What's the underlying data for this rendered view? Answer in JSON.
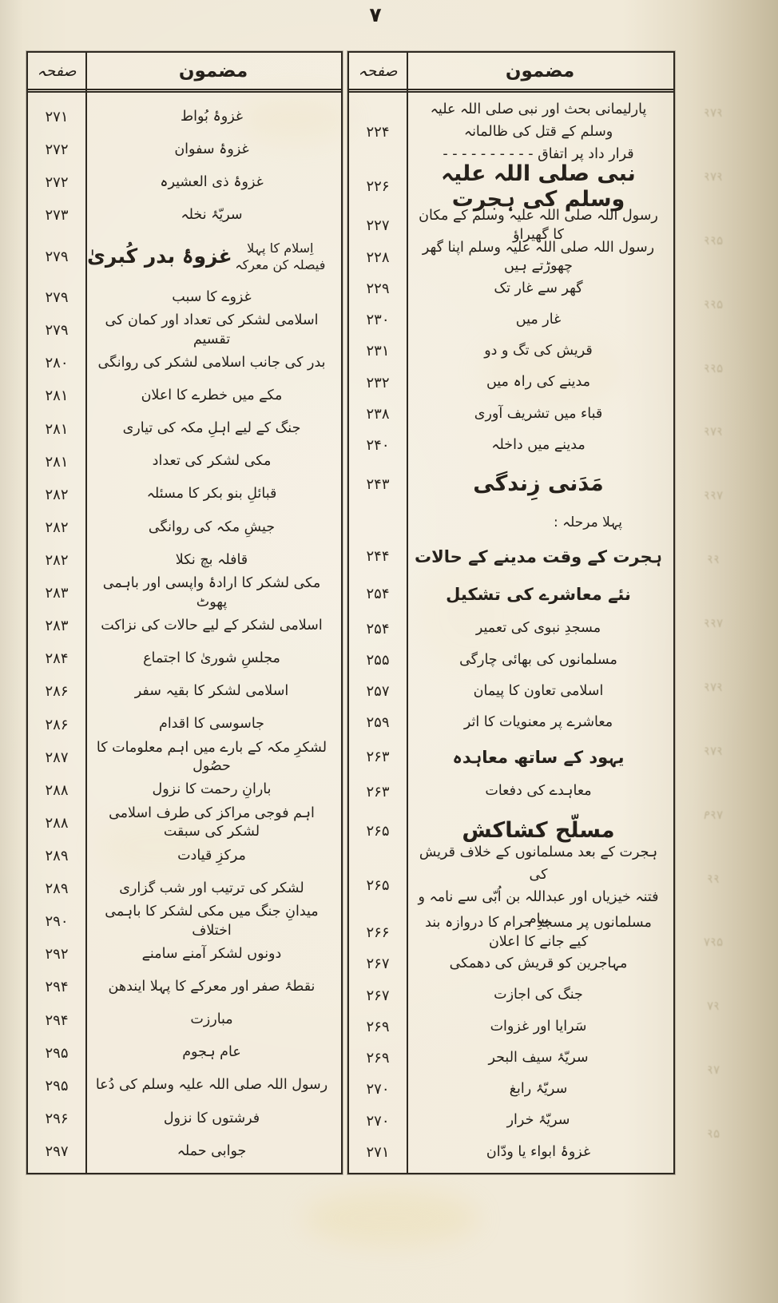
{
  "page": {
    "folio_number": "۷"
  },
  "right_table": {
    "header": {
      "page_col": "صفحہ",
      "topic_col": "مضمون"
    },
    "rows": [
      {
        "page": "۲۲۴",
        "topic": "پارلیمانی بحث اور نبی صلی اللہ علیہ وسلم کے قتل کی ظالمانہ\nقرار داد پر اتفاق  - - - - - - - - - -",
        "style": "twoline"
      },
      {
        "page": "۲۲۶",
        "topic": "نبی صلی اللہ علیہ وسلم کی ہجرت",
        "style": "h1"
      },
      {
        "page": "۲۲۷",
        "topic": "رسول اللہ صلی اللہ علیہ وسلم کے مکان کا گھیراؤ"
      },
      {
        "page": "۲۲۸",
        "topic": "رسول اللہ صلی اللہ علیہ وسلم اپنا گھر چھوڑتے ہیں"
      },
      {
        "page": "۲۲۹",
        "topic": "گھر سے غار تک"
      },
      {
        "page": "۲۳۰",
        "topic": "غار میں"
      },
      {
        "page": "۲۳۱",
        "topic": "قریش کی تگ و دو"
      },
      {
        "page": "۲۳۲",
        "topic": "مدینے کی راہ میں"
      },
      {
        "page": "۲۳۸",
        "topic": "قباء میں تشریف آوری"
      },
      {
        "page": "۲۴۰",
        "topic": "مدینے میں داخلہ"
      },
      {
        "page": "۲۴۳",
        "topic": "مَدَنی زِندگی",
        "style": "h1"
      },
      {
        "page": "",
        "topic": "پہلا مرحلہ :",
        "style": "label"
      },
      {
        "page": "۲۴۴",
        "topic": "ہجرت کے وقت مدینے کے حالات",
        "style": "h2"
      },
      {
        "page": "۲۵۴",
        "topic": "نئے معاشرے کی تشکیل",
        "style": "h2"
      },
      {
        "page": "۲۵۴",
        "topic": "مسجدِ نبوی کی تعمیر"
      },
      {
        "page": "۲۵۵",
        "topic": "مسلمانوں کی بھائی چارگی"
      },
      {
        "page": "۲۵۷",
        "topic": "اسلامی تعاون کا پیمان"
      },
      {
        "page": "۲۵۹",
        "topic": "معاشرے پر معنویات کا اثر"
      },
      {
        "page": "۲۶۳",
        "topic": "یہود کے ساتھ معاہدہ",
        "style": "h2"
      },
      {
        "page": "۲۶۳",
        "topic": "معاہدے کی دفعات"
      },
      {
        "page": "۲۶۵",
        "topic": "مسلّح کشاکش",
        "style": "h1"
      },
      {
        "page": "۲۶۵",
        "topic": "ہجرت کے بعد مسلمانوں کے خلاف قریش کی\nفتنہ خیزیاں اور عبداللہ بن اُبّی سے نامہ و پیام",
        "style": "twoline"
      },
      {
        "page": "۲۶۶",
        "topic": "مسلمانوں پر مسجدِ حرام کا دروازہ بند کیے جانے کا اعلان"
      },
      {
        "page": "۲۶۷",
        "topic": "مہاجرین کو قریش کی دھمکی"
      },
      {
        "page": "۲۶۷",
        "topic": "جنگ کی اجازت"
      },
      {
        "page": "۲۶۹",
        "topic": "سَرایا اور غزوات"
      },
      {
        "page": "۲۶۹",
        "topic": "سریّۂ سیف البحر"
      },
      {
        "page": "۲۷۰",
        "topic": "سریّۂ رابغ"
      },
      {
        "page": "۲۷۰",
        "topic": "سریّۂ خرار"
      },
      {
        "page": "۲۷۱",
        "topic": "غزوۂ ابواء یا ودّان"
      }
    ]
  },
  "left_table": {
    "header": {
      "page_col": "صفحہ",
      "topic_col": "مضمون"
    },
    "rows": [
      {
        "page": "۲۷۱",
        "topic": "غزوۂ بُواط"
      },
      {
        "page": "۲۷۲",
        "topic": "غزوۂ سفوان"
      },
      {
        "page": "۲۷۲",
        "topic": "غزوۂ ذی العشیرہ"
      },
      {
        "page": "۲۷۳",
        "topic": "سریّۂ نخلہ"
      },
      {
        "page": "۲۷۹",
        "topic": "غزوۂ بدر کُبریٰ",
        "sub": "اِسلام کا پہلا فیصلہ کن معرکہ",
        "style": "h1combo"
      },
      {
        "page": "۲۷۹",
        "topic": "غزوے کا سبب"
      },
      {
        "page": "۲۷۹",
        "topic": "اسلامی لشکر کی تعداد اور کمان کی تقسیم"
      },
      {
        "page": "۲۸۰",
        "topic": "بدر کی جانب اسلامی لشکر کی روانگی"
      },
      {
        "page": "۲۸۱",
        "topic": "مکے میں خطرے کا اعلان"
      },
      {
        "page": "۲۸۱",
        "topic": "جنگ کے لیے اہلِ مکہ کی تیاری"
      },
      {
        "page": "۲۸۱",
        "topic": "مکی لشکر کی تعداد"
      },
      {
        "page": "۲۸۲",
        "topic": "قبائلِ بنو بکر کا مسئلہ"
      },
      {
        "page": "۲۸۲",
        "topic": "جیشِ مکہ کی روانگی"
      },
      {
        "page": "۲۸۲",
        "topic": "قافلہ بچ نکلا"
      },
      {
        "page": "۲۸۳",
        "topic": "مکی لشکر کا ارادۂ واپسی اور باہمی پھوٹ"
      },
      {
        "page": "۲۸۳",
        "topic": "اسلامی لشکر کے لیے حالات کی نزاکت"
      },
      {
        "page": "۲۸۴",
        "topic": "مجلسِ شوریٰ کا اجتماع"
      },
      {
        "page": "۲۸۶",
        "topic": "اسلامی لشکر کا بقیہ سفر"
      },
      {
        "page": "۲۸۶",
        "topic": "جاسوسی کا اقدام"
      },
      {
        "page": "۲۸۷",
        "topic": "لشکرِ مکہ کے بارے میں اہم معلومات کا حصُول"
      },
      {
        "page": "۲۸۸",
        "topic": "بارانِ رحمت کا نزول"
      },
      {
        "page": "۲۸۸",
        "topic": "اہم فوجی مراکز کی طرف اسلامی لشکر کی سبقت"
      },
      {
        "page": "۲۸۹",
        "topic": "مرکزِ قیادت"
      },
      {
        "page": "۲۸۹",
        "topic": "لشکر کی ترتیب اور شب گزاری"
      },
      {
        "page": "۲۹۰",
        "topic": "میدانِ جنگ میں مکی لشکر کا باہمی اختلاف"
      },
      {
        "page": "۲۹۲",
        "topic": "دونوں لشکر آمنے سامنے"
      },
      {
        "page": "۲۹۴",
        "topic": "نقطۂ صفر اور معرکے کا پہلا ایندھن"
      },
      {
        "page": "۲۹۴",
        "topic": "مبارزت"
      },
      {
        "page": "۲۹۵",
        "topic": "عام ہجوم"
      },
      {
        "page": "۲۹۵",
        "topic": "رسول اللہ صلی اللہ علیہ وسلم کی دُعا"
      },
      {
        "page": "۲۹۶",
        "topic": "فرشتوں کا نزول"
      },
      {
        "page": "۲۹۷",
        "topic": "جوابی حملہ"
      }
    ]
  },
  "ghost_margin": {
    "digits": [
      "۶۷۶",
      "۶۷۶",
      "۵۶۶",
      "۵۶۶",
      "۵۶۶",
      "۶۷۶",
      "۷۶۶",
      "۶۶",
      "۷۶۶",
      "۶۷۶",
      "۶۷۶",
      "۷۶۹",
      "۶۶",
      "۵۶۷",
      "۶۷",
      "۷۶",
      "۵۶"
    ]
  }
}
